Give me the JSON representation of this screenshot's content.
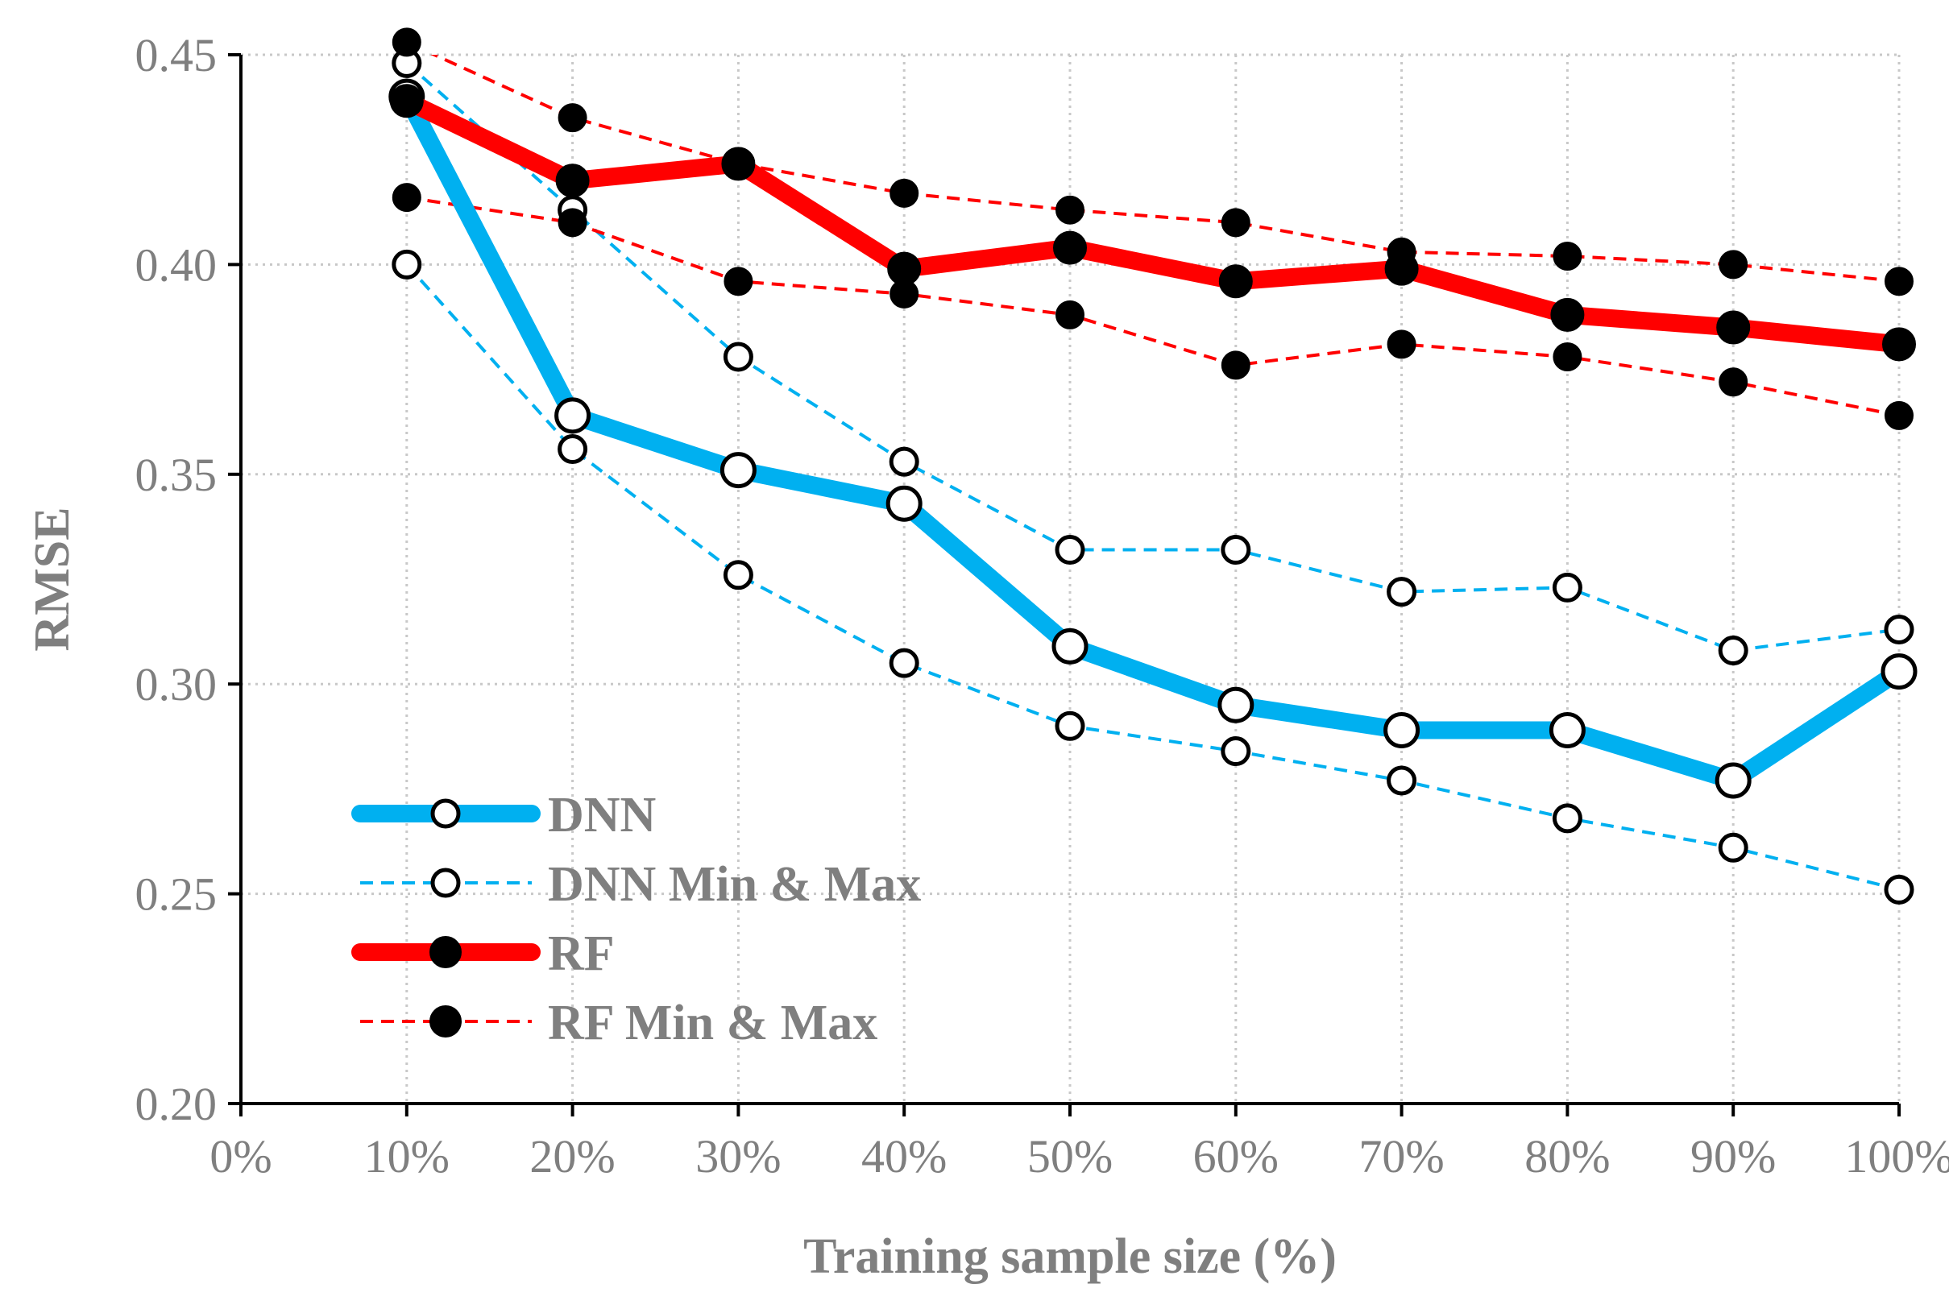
{
  "chart_data": {
    "type": "line",
    "title": "",
    "xlabel": "Training sample size (%)",
    "ylabel": "RMSE",
    "x_ticks": [
      "0%",
      "10%",
      "20%",
      "30%",
      "40%",
      "50%",
      "60%",
      "70%",
      "80%",
      "90%",
      "100%"
    ],
    "y_ticks": [
      "0.20",
      "0.25",
      "0.30",
      "0.35",
      "0.40",
      "0.45"
    ],
    "xlim": [
      0,
      100
    ],
    "ylim": [
      0.2,
      0.45
    ],
    "grid": "dotted",
    "legend_position": "bottom-left",
    "x": [
      10,
      20,
      30,
      40,
      50,
      60,
      70,
      80,
      90,
      100
    ],
    "series": [
      {
        "name": "DNN",
        "color": "#00b0f0",
        "line_style": "solid-thick",
        "marker": "open-circle",
        "values": [
          0.44,
          0.364,
          0.351,
          0.343,
          0.309,
          0.295,
          0.289,
          0.289,
          0.277,
          0.303
        ]
      },
      {
        "name": "DNN Min & Max",
        "color": "#00b0f0",
        "line_style": "dashed",
        "marker": "open-circle",
        "values_max": [
          0.448,
          0.413,
          0.378,
          0.353,
          0.332,
          0.332,
          0.322,
          0.323,
          0.308,
          0.313
        ],
        "values_min": [
          0.4,
          0.356,
          0.326,
          0.305,
          0.29,
          0.284,
          0.277,
          0.268,
          0.261,
          0.251
        ]
      },
      {
        "name": "RF",
        "color": "#ff0000",
        "line_style": "solid-thick",
        "marker": "filled-circle",
        "values": [
          0.439,
          0.42,
          0.424,
          0.399,
          0.404,
          0.396,
          0.399,
          0.388,
          0.385,
          0.381
        ]
      },
      {
        "name": "RF Min & Max",
        "color": "#ff0000",
        "line_style": "dashed",
        "marker": "filled-circle",
        "values_max": [
          0.453,
          0.435,
          0.424,
          0.417,
          0.413,
          0.41,
          0.403,
          0.402,
          0.4,
          0.396
        ],
        "values_min": [
          0.416,
          0.41,
          0.396,
          0.393,
          0.388,
          0.376,
          0.381,
          0.378,
          0.372,
          0.364
        ]
      }
    ]
  }
}
